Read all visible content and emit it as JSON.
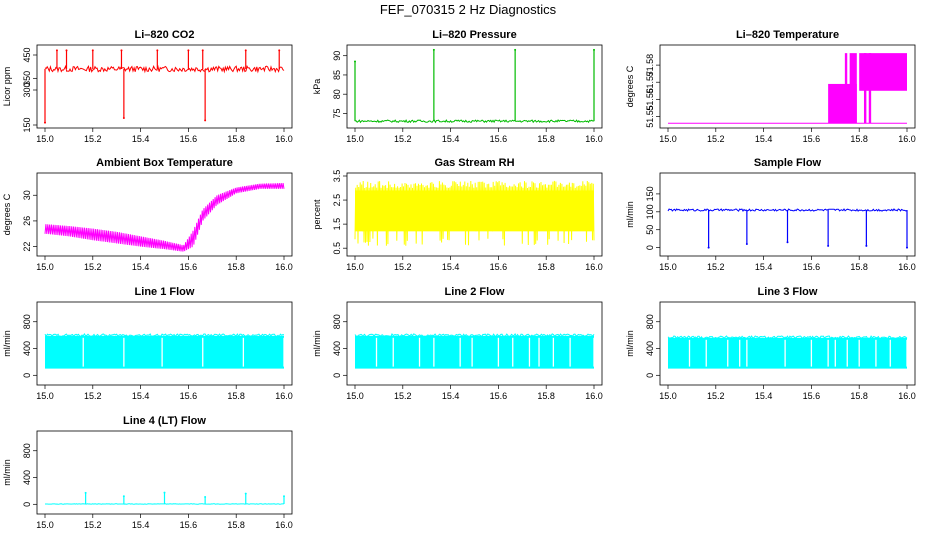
{
  "page_title": "FEF_070315  2 Hz Diagnostics",
  "chart_data": [
    {
      "id": "co2",
      "type": "line",
      "title": "Li–820 CO2",
      "ylabel": "Licor ppm",
      "color": "#ff0000",
      "xlim": [
        15.0,
        16.0
      ],
      "ylim": [
        150,
        480
      ],
      "xticks": [
        "15.0",
        "15.2",
        "15.4",
        "15.6",
        "15.8",
        "16.0"
      ],
      "yticks": [
        150,
        300,
        350,
        450
      ],
      "baseline": 390,
      "band": 12,
      "spikes": [
        {
          "x": 15.0,
          "y": 160
        },
        {
          "x": 15.05,
          "y": 470
        },
        {
          "x": 15.09,
          "y": 470
        },
        {
          "x": 15.2,
          "y": 470
        },
        {
          "x": 15.32,
          "y": 470
        },
        {
          "x": 15.33,
          "y": 180
        },
        {
          "x": 15.47,
          "y": 470
        },
        {
          "x": 15.6,
          "y": 470
        },
        {
          "x": 15.66,
          "y": 470
        },
        {
          "x": 15.67,
          "y": 170
        },
        {
          "x": 15.84,
          "y": 470
        },
        {
          "x": 15.98,
          "y": 470
        }
      ]
    },
    {
      "id": "pressure",
      "type": "line",
      "title": "Li–820 Pressure",
      "ylabel": "kPa",
      "color": "#00bb00",
      "xlim": [
        15.0,
        16.0
      ],
      "ylim": [
        72,
        92
      ],
      "xticks": [
        "15.0",
        "15.2",
        "15.4",
        "15.6",
        "15.8",
        "16.0"
      ],
      "yticks": [
        75,
        80,
        85,
        90
      ],
      "baseline": 73.0,
      "band": 0.3,
      "spikes": [
        {
          "x": 15.0,
          "y": 88.5
        },
        {
          "x": 15.33,
          "y": 91.5
        },
        {
          "x": 15.67,
          "y": 91.5
        },
        {
          "x": 16.0,
          "y": 91.5
        }
      ]
    },
    {
      "id": "temperature",
      "type": "step",
      "title": "Li–820 Temperature",
      "ylabel": "degrees C",
      "color": "#ff00ff",
      "xlim": [
        15.0,
        16.0
      ],
      "ylim": [
        51.545,
        51.59
      ],
      "xticks": [
        "15.0",
        "15.2",
        "15.4",
        "15.6",
        "15.8",
        "16.0"
      ],
      "yticks": [
        51.55,
        51.56,
        51.57,
        51.58
      ],
      "baseline": 51.546,
      "blocks": [
        {
          "x0": 15.67,
          "x1": 15.79,
          "y0": 51.546,
          "y1": 51.569
        },
        {
          "x0": 15.74,
          "x1": 15.75,
          "y0": 51.546,
          "y1": 51.587
        },
        {
          "x0": 15.76,
          "x1": 15.79,
          "y0": 51.546,
          "y1": 51.587
        },
        {
          "x0": 15.8,
          "x1": 16.0,
          "y0": 51.565,
          "y1": 51.587
        },
        {
          "x0": 15.82,
          "x1": 15.83,
          "y0": 51.546,
          "y1": 51.587
        },
        {
          "x0": 15.84,
          "x1": 15.85,
          "y0": 51.546,
          "y1": 51.587
        }
      ]
    },
    {
      "id": "box_temp",
      "type": "noisy",
      "title": "Ambient Box Temperature",
      "ylabel": "degrees C",
      "color": "#ff00ff",
      "xlim": [
        15.0,
        16.0
      ],
      "ylim": [
        21,
        33
      ],
      "xticks": [
        "15.0",
        "15.2",
        "15.4",
        "15.6",
        "15.8",
        "16.0"
      ],
      "yticks": [
        22,
        26,
        30
      ],
      "x": [
        15.0,
        15.1,
        15.2,
        15.3,
        15.4,
        15.5,
        15.58,
        15.62,
        15.66,
        15.72,
        15.8,
        15.9,
        16.0
      ],
      "upper": [
        25.5,
        25.2,
        24.8,
        24.3,
        23.6,
        22.9,
        22.2,
        24.5,
        27.8,
        30.0,
        31.2,
        31.8,
        31.9
      ],
      "lower": [
        24.0,
        23.6,
        23.0,
        22.5,
        22.0,
        21.6,
        21.2,
        22.0,
        26.0,
        28.5,
        30.3,
        31.0,
        31.0
      ]
    },
    {
      "id": "rh",
      "type": "band",
      "title": "Gas Stream RH",
      "ylabel": "percent",
      "color": "#ffff00",
      "xlim": [
        15.0,
        16.0
      ],
      "ylim": [
        0.3,
        3.5
      ],
      "xticks": [
        "15.0",
        "15.2",
        "15.4",
        "15.6",
        "15.8",
        "16.0"
      ],
      "yticks": [
        0.5,
        1.5,
        2.5,
        3.5
      ],
      "lo": 0.6,
      "hi": 3.3,
      "dense_lo": 1.2,
      "dense_hi": 2.9
    },
    {
      "id": "sample_flow",
      "type": "line",
      "title": "Sample Flow",
      "ylabel": "ml/min",
      "color": "#0000ff",
      "xlim": [
        15.0,
        16.0
      ],
      "ylim": [
        -15,
        200
      ],
      "xticks": [
        "15.0",
        "15.2",
        "15.4",
        "15.6",
        "15.8",
        "16.0"
      ],
      "yticks": [
        0,
        50,
        100,
        150
      ],
      "baseline": 105,
      "band": 3,
      "spikes": [
        {
          "x": 15.17,
          "y": 0
        },
        {
          "x": 15.33,
          "y": 10
        },
        {
          "x": 15.5,
          "y": 15
        },
        {
          "x": 15.67,
          "y": 5
        },
        {
          "x": 15.83,
          "y": 5
        },
        {
          "x": 16.0,
          "y": 0
        }
      ]
    },
    {
      "id": "line1",
      "type": "flow",
      "title": "Line 1 Flow",
      "ylabel": "ml/min",
      "color": "#00ffff",
      "xlim": [
        15.0,
        16.0
      ],
      "ylim": [
        -100,
        1050
      ],
      "xticks": [
        "15.0",
        "15.2",
        "15.4",
        "15.6",
        "15.8",
        "16.0"
      ],
      "yticks": [
        0,
        400,
        800
      ],
      "lo": 100,
      "hi": 590,
      "gaps": [
        15.16,
        15.33,
        15.49,
        15.66,
        15.83,
        16.0
      ]
    },
    {
      "id": "line2",
      "type": "flow",
      "title": "Line 2 Flow",
      "ylabel": "ml/min",
      "color": "#00ffff",
      "xlim": [
        15.0,
        16.0
      ],
      "ylim": [
        -100,
        1050
      ],
      "xticks": [
        "15.0",
        "15.2",
        "15.4",
        "15.6",
        "15.8",
        "16.0"
      ],
      "yticks": [
        0,
        400,
        800
      ],
      "lo": 100,
      "hi": 590,
      "gaps": [
        15.09,
        15.16,
        15.27,
        15.33,
        15.44,
        15.49,
        15.6,
        15.66,
        15.73,
        15.77,
        15.83,
        15.9,
        16.0
      ]
    },
    {
      "id": "line3",
      "type": "flow",
      "title": "Line 3 Flow",
      "ylabel": "ml/min",
      "color": "#00ffff",
      "xlim": [
        15.0,
        16.0
      ],
      "ylim": [
        -100,
        1050
      ],
      "xticks": [
        "15.0",
        "15.2",
        "15.4",
        "15.6",
        "15.8",
        "16.0"
      ],
      "yticks": [
        0,
        400,
        800
      ],
      "lo": 100,
      "hi": 560,
      "gaps": [
        15.09,
        15.16,
        15.25,
        15.3,
        15.33,
        15.49,
        15.6,
        15.67,
        15.7,
        15.75,
        15.8,
        15.87,
        15.93,
        16.0
      ]
    },
    {
      "id": "line4",
      "type": "line",
      "title": "Line 4 (LT) Flow",
      "ylabel": "ml/min",
      "color": "#00ffff",
      "xlim": [
        15.0,
        16.0
      ],
      "ylim": [
        -100,
        1050
      ],
      "xticks": [
        "15.0",
        "15.2",
        "15.4",
        "15.6",
        "15.8",
        "16.0"
      ],
      "yticks": [
        0,
        400,
        800
      ],
      "baseline": 5,
      "band": 3,
      "spikes": [
        {
          "x": 15.17,
          "y": 170
        },
        {
          "x": 15.33,
          "y": 120
        },
        {
          "x": 15.5,
          "y": 175
        },
        {
          "x": 15.67,
          "y": 110
        },
        {
          "x": 15.84,
          "y": 160
        },
        {
          "x": 16.0,
          "y": 120
        }
      ]
    }
  ]
}
